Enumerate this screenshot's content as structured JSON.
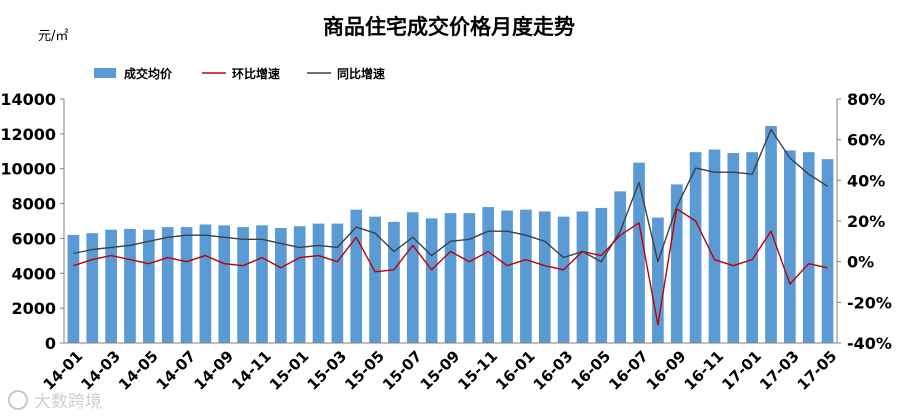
{
  "chart_data": {
    "type": "bar",
    "title": "商品住宅成交价格月度走势",
    "ylabel": "元/㎡",
    "ylim": [
      0,
      14000
    ],
    "y2lim": [
      -40,
      80
    ],
    "yticks": [
      "0",
      "2000",
      "4000",
      "6000",
      "8000",
      "10000",
      "12000",
      "14000"
    ],
    "y2ticks": [
      "-40%",
      "-20%",
      "0%",
      "20%",
      "40%",
      "60%",
      "80%"
    ],
    "legend_position": "top-left",
    "grid": false,
    "categories": [
      "14-01",
      "14-02",
      "14-03",
      "14-04",
      "14-05",
      "14-06",
      "14-07",
      "14-08",
      "14-09",
      "14-10",
      "14-11",
      "14-12",
      "15-01",
      "15-02",
      "15-03",
      "15-04",
      "15-05",
      "15-06",
      "15-07",
      "15-08",
      "15-09",
      "15-10",
      "15-11",
      "15-12",
      "16-01",
      "16-02",
      "16-03",
      "16-04",
      "16-05",
      "16-06",
      "16-07",
      "16-08",
      "16-09",
      "16-10",
      "16-11",
      "16-12",
      "17-01",
      "17-02",
      "17-03",
      "17-04",
      "17-05"
    ],
    "xtick_labels": [
      "14-01",
      "14-03",
      "14-05",
      "14-07",
      "14-09",
      "14-11",
      "15-01",
      "15-03",
      "15-05",
      "15-07",
      "15-09",
      "15-11",
      "16-01",
      "16-03",
      "16-05",
      "16-07",
      "16-09",
      "16-11",
      "17-01",
      "17-03",
      "17-05"
    ],
    "series": [
      {
        "name": "成交均价",
        "type": "bar",
        "axis": "left",
        "color": "#5b9bd5",
        "values": [
          6200,
          6300,
          6500,
          6550,
          6500,
          6650,
          6650,
          6800,
          6750,
          6650,
          6750,
          6600,
          6700,
          6850,
          6850,
          7650,
          7250,
          6950,
          7500,
          7150,
          7450,
          7450,
          7800,
          7600,
          7650,
          7550,
          7250,
          7550,
          7750,
          8700,
          10350,
          7200,
          9100,
          10950,
          11100,
          10900,
          10950,
          12450,
          11050,
          10950,
          10550
        ]
      },
      {
        "name": "环比增速",
        "type": "line",
        "axis": "right",
        "color": "#c00000",
        "values": [
          -2,
          1,
          3,
          1,
          -1,
          2,
          0,
          3,
          -1,
          -2,
          2,
          -3,
          2,
          3,
          0,
          12,
          -5,
          -4,
          8,
          -4,
          5,
          0,
          5,
          -2,
          1,
          -2,
          -4,
          5,
          3,
          13,
          19,
          -31,
          26,
          20,
          1,
          -2,
          1,
          15,
          -11,
          -1,
          -3
        ]
      },
      {
        "name": "同比增速",
        "type": "line",
        "axis": "right",
        "color": "#404040",
        "values": [
          4,
          6,
          7,
          8,
          10,
          12,
          13,
          13,
          12,
          11,
          11,
          9,
          7,
          8,
          7,
          17,
          14,
          5,
          12,
          3,
          10,
          11,
          15,
          15,
          13,
          10,
          2,
          5,
          0,
          15,
          39,
          0,
          27,
          46,
          44,
          44,
          43,
          65,
          51,
          43,
          37
        ]
      }
    ]
  },
  "watermark": "大数跨境"
}
